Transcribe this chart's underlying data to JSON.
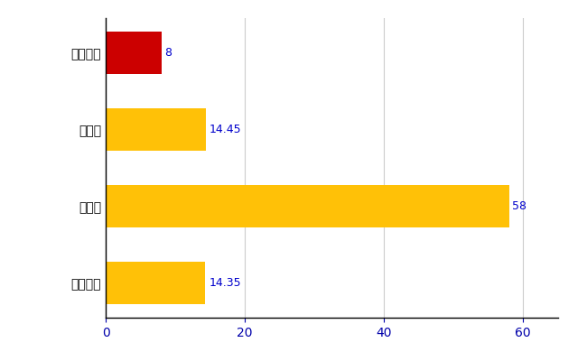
{
  "categories": [
    "全国平均",
    "県最大",
    "県平均",
    "南伊勢町"
  ],
  "values": [
    14.35,
    58,
    14.45,
    8
  ],
  "bar_colors": [
    "#FFC107",
    "#FFC107",
    "#FFC107",
    "#CC0000"
  ],
  "value_labels": [
    "14.35",
    "58",
    "14.45",
    "8"
  ],
  "xlim": [
    0,
    65
  ],
  "background_color": "#FFFFFF",
  "grid_color": "#CCCCCC",
  "label_color": "#0000CC",
  "bar_height": 0.55,
  "tick_label_color": "#0000AA"
}
